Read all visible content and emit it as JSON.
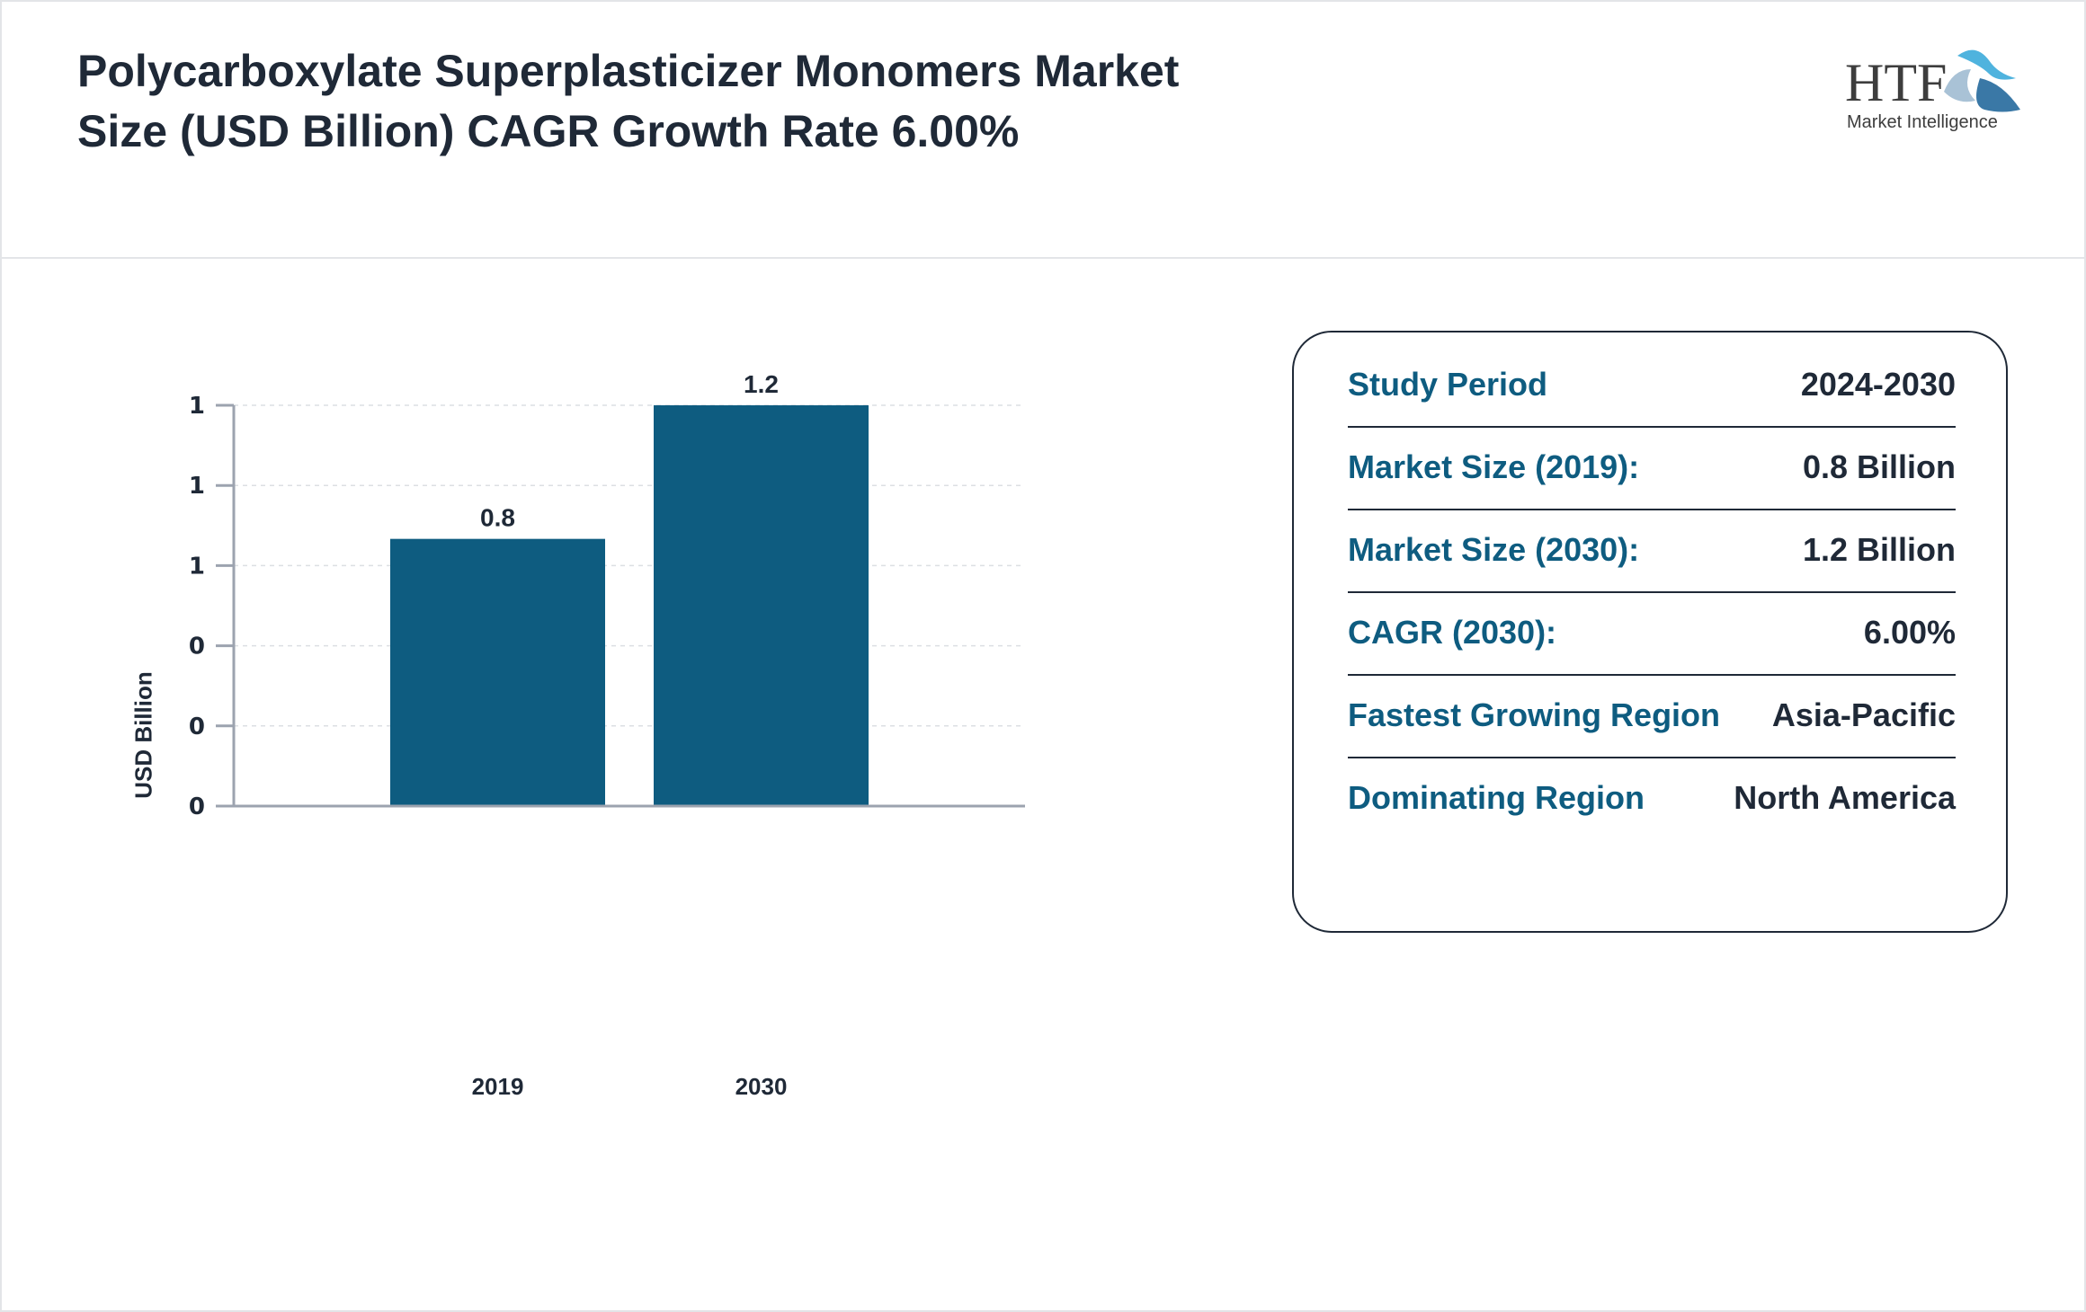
{
  "header": {
    "title": "Polycarboxylate Superplasticizer Monomers Market Size (USD Billion) CAGR Growth Rate 6.00%",
    "logo_text": "HTF",
    "logo_subtext": "Market Intelligence"
  },
  "chart_data": {
    "type": "bar",
    "categories": [
      "2019",
      "2030"
    ],
    "values": [
      0.8,
      1.2
    ],
    "data_labels": [
      "0.8",
      "1.2"
    ],
    "title": "",
    "xlabel": "",
    "ylabel": "USD Billion",
    "ylim": [
      0,
      1.2
    ],
    "y_ticks": [
      0,
      0.24,
      0.48,
      0.72,
      0.96,
      1.2
    ],
    "y_tick_labels": [
      "0",
      "0",
      "0",
      "1",
      "1",
      "1"
    ],
    "grid": true,
    "bar_color": "#0e5c80"
  },
  "info": {
    "rows": [
      {
        "label": "Study Period",
        "value": "2024-2030"
      },
      {
        "label": "Market Size (2019):",
        "value": "0.8 Billion"
      },
      {
        "label": "Market Size (2030):",
        "value": "1.2 Billion"
      },
      {
        "label": "CAGR (2030):",
        "value": "6.00%"
      },
      {
        "label": "Fastest Growing Region",
        "value": "Asia-Pacific"
      },
      {
        "label": "Dominating Region",
        "value": "North America"
      }
    ],
    "label_color": "#0e5c80"
  }
}
